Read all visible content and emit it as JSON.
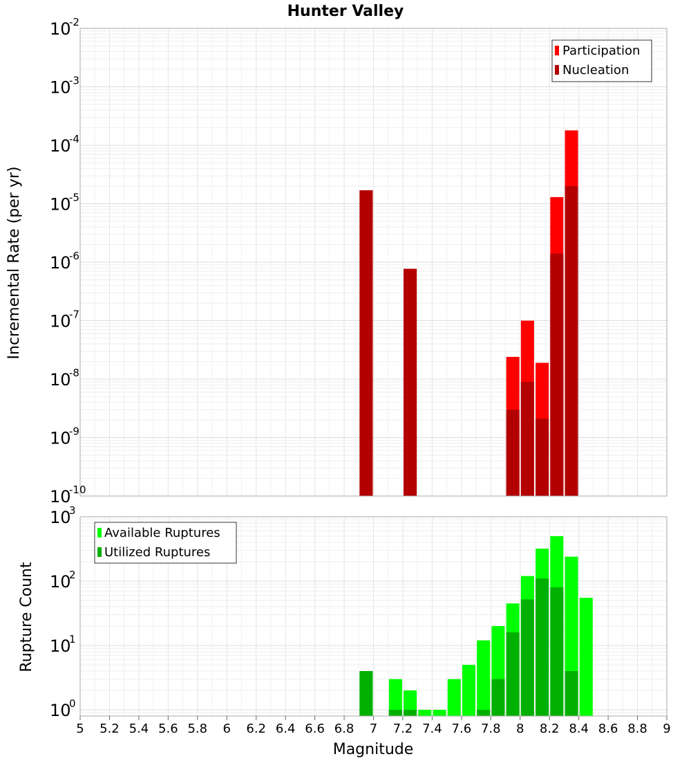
{
  "chart_data": [
    {
      "type": "bar",
      "title": "Hunter Valley",
      "ylabel": "Incremental Rate (per yr)",
      "xlim": [
        5,
        9
      ],
      "ylim": [
        1e-10,
        0.01
      ],
      "yscale": "log",
      "y_tick_exponents": [
        "-10",
        "-9",
        "-8",
        "-7",
        "-6",
        "-5",
        "-4",
        "-3",
        "-2"
      ],
      "grid": true,
      "legend_position": "top-right",
      "series": [
        {
          "name": "Participation",
          "color": "#ff0000",
          "x": [
            6.95,
            7.25,
            7.95,
            8.05,
            8.15,
            8.25,
            8.35
          ],
          "values": [
            1.7e-05,
            7.7e-07,
            2.4e-08,
            1e-07,
            1.9e-08,
            1.3e-05,
            0.00018
          ]
        },
        {
          "name": "Nucleation",
          "color": "#b30000",
          "x": [
            6.95,
            7.25,
            7.95,
            8.05,
            8.15,
            8.25,
            8.35
          ],
          "values": [
            1.7e-05,
            7.7e-07,
            3e-09,
            9e-09,
            2.1e-09,
            1.4e-06,
            2e-05
          ]
        }
      ]
    },
    {
      "type": "bar",
      "xlabel": "Magnitude",
      "ylabel": "Rupture Count",
      "xlim": [
        5,
        9
      ],
      "ylim": [
        0.8,
        1000
      ],
      "yscale": "log",
      "y_tick_exponents": [
        "0",
        "1",
        "2",
        "3"
      ],
      "grid": true,
      "legend_position": "top-left",
      "x_ticks": [
        "5",
        "5.2",
        "5.4",
        "5.6",
        "5.8",
        "6",
        "6.2",
        "6.4",
        "6.6",
        "6.8",
        "7",
        "7.2",
        "7.4",
        "7.6",
        "7.8",
        "8",
        "8.2",
        "8.4",
        "8.6",
        "8.8",
        "9"
      ],
      "series": [
        {
          "name": "Available Ruptures",
          "color": "#00ff00",
          "x": [
            6.95,
            7.15,
            7.25,
            7.35,
            7.45,
            7.55,
            7.65,
            7.75,
            7.85,
            7.95,
            8.05,
            8.15,
            8.25,
            8.35,
            8.45
          ],
          "values": [
            4,
            3,
            2,
            1,
            1,
            3,
            5,
            12,
            20,
            45,
            120,
            320,
            500,
            240,
            55
          ]
        },
        {
          "name": "Utilized Ruptures",
          "color": "#00b000",
          "x": [
            6.95,
            7.15,
            7.25,
            7.35,
            7.45,
            7.55,
            7.65,
            7.75,
            7.85,
            7.95,
            8.05,
            8.15,
            8.25,
            8.35,
            8.45
          ],
          "values": [
            4,
            1,
            1,
            0,
            0,
            0,
            0,
            1,
            3,
            16,
            52,
            110,
            80,
            4,
            0
          ]
        }
      ]
    }
  ]
}
